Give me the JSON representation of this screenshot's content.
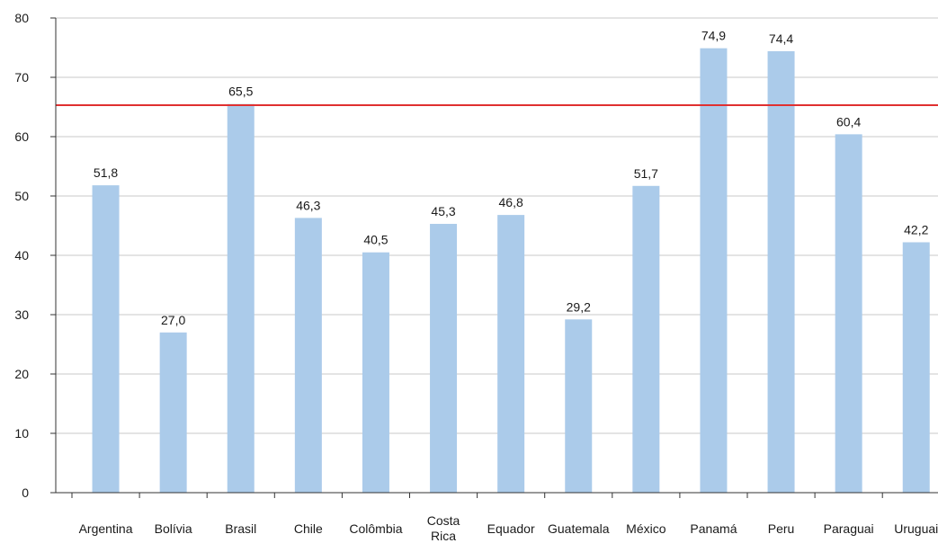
{
  "chart_data": {
    "type": "bar",
    "title": "",
    "xlabel": "",
    "ylabel": "",
    "categories": [
      "Argentina",
      "Bolívia",
      "Brasil",
      "Chile",
      "Colômbia",
      "Costa Rica",
      "Equador",
      "Guatemala",
      "México",
      "Panamá",
      "Peru",
      "Paraguai",
      "Uruguai"
    ],
    "values": [
      51.8,
      27.0,
      65.5,
      46.3,
      40.5,
      45.3,
      46.8,
      29.2,
      51.7,
      74.9,
      74.4,
      60.4,
      42.2
    ],
    "value_labels": [
      "51,8",
      "27,0",
      "65,5",
      "46,3",
      "40,5",
      "45,3",
      "46,8",
      "29,2",
      "51,7",
      "74,9",
      "74,4",
      "60,4",
      "42,2"
    ],
    "ylim": [
      0,
      80
    ],
    "yticks": [
      0,
      10,
      20,
      30,
      40,
      50,
      60,
      70,
      80
    ],
    "reference_line": 65.3,
    "grid": true,
    "colors": {
      "bar": "#abcbea",
      "reference_line": "#e03030",
      "grid": "#c8c8c8",
      "axis": "#333333"
    }
  }
}
